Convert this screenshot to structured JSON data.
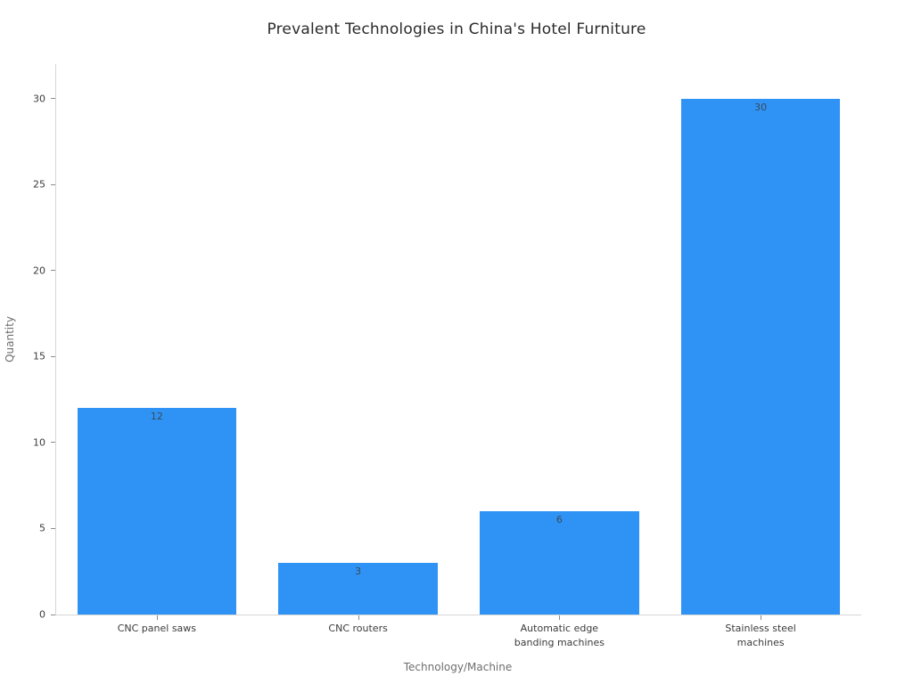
{
  "chart_data": {
    "type": "bar",
    "title": "Prevalent Technologies in China's Hotel Furniture",
    "xlabel": "Technology/Machine",
    "ylabel": "Quantity",
    "categories": [
      "CNC panel saws",
      "CNC routers",
      "Automatic edge\nbanding machines",
      "Stainless steel\nmachines"
    ],
    "values": [
      12,
      3,
      6,
      30
    ],
    "value_labels": [
      "12",
      "3",
      "6",
      "30"
    ],
    "yticks": [
      0,
      5,
      10,
      15,
      20,
      25,
      30
    ],
    "ylim": [
      0,
      32
    ],
    "bar_color": "#2E93F5",
    "grid": false,
    "legend_position": "none",
    "value_label_position": "inside-top"
  }
}
